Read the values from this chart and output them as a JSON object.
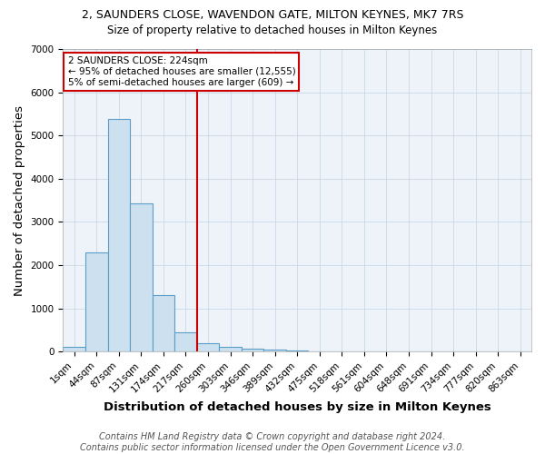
{
  "title": "2, SAUNDERS CLOSE, WAVENDON GATE, MILTON KEYNES, MK7 7RS",
  "subtitle": "Size of property relative to detached houses in Milton Keynes",
  "xlabel": "Distribution of detached houses by size in Milton Keynes",
  "ylabel": "Number of detached properties",
  "footer_line1": "Contains HM Land Registry data © Crown copyright and database right 2024.",
  "footer_line2": "Contains public sector information licensed under the Open Government Licence v3.0.",
  "annotation_line1": "2 SAUNDERS CLOSE: 224sqm",
  "annotation_line2": "← 95% of detached houses are smaller (12,555)",
  "annotation_line3": "5% of semi-detached houses are larger (609) →",
  "bar_color": "#cce0f0",
  "bar_edge_color": "#5a9ec8",
  "vline_color": "#cc0000",
  "annotation_box_color": "#cc0000",
  "categories": [
    "1sqm",
    "44sqm",
    "87sqm",
    "131sqm",
    "174sqm",
    "217sqm",
    "260sqm",
    "303sqm",
    "346sqm",
    "389sqm",
    "432sqm",
    "475sqm",
    "518sqm",
    "561sqm",
    "604sqm",
    "648sqm",
    "691sqm",
    "734sqm",
    "777sqm",
    "820sqm",
    "863sqm"
  ],
  "values": [
    100,
    2290,
    5390,
    3420,
    1300,
    450,
    195,
    100,
    70,
    50,
    28,
    8,
    0,
    0,
    0,
    0,
    0,
    0,
    0,
    0,
    0
  ],
  "ylim": [
    0,
    7000
  ],
  "yticks": [
    0,
    1000,
    2000,
    3000,
    4000,
    5000,
    6000,
    7000
  ],
  "vline_index": 5.5,
  "background_color": "#eef3f9",
  "title_fontsize": 9,
  "subtitle_fontsize": 8.5,
  "axis_label_fontsize": 9.5,
  "tick_fontsize": 7.5,
  "footer_fontsize": 7,
  "ylabel_color": "#000000"
}
